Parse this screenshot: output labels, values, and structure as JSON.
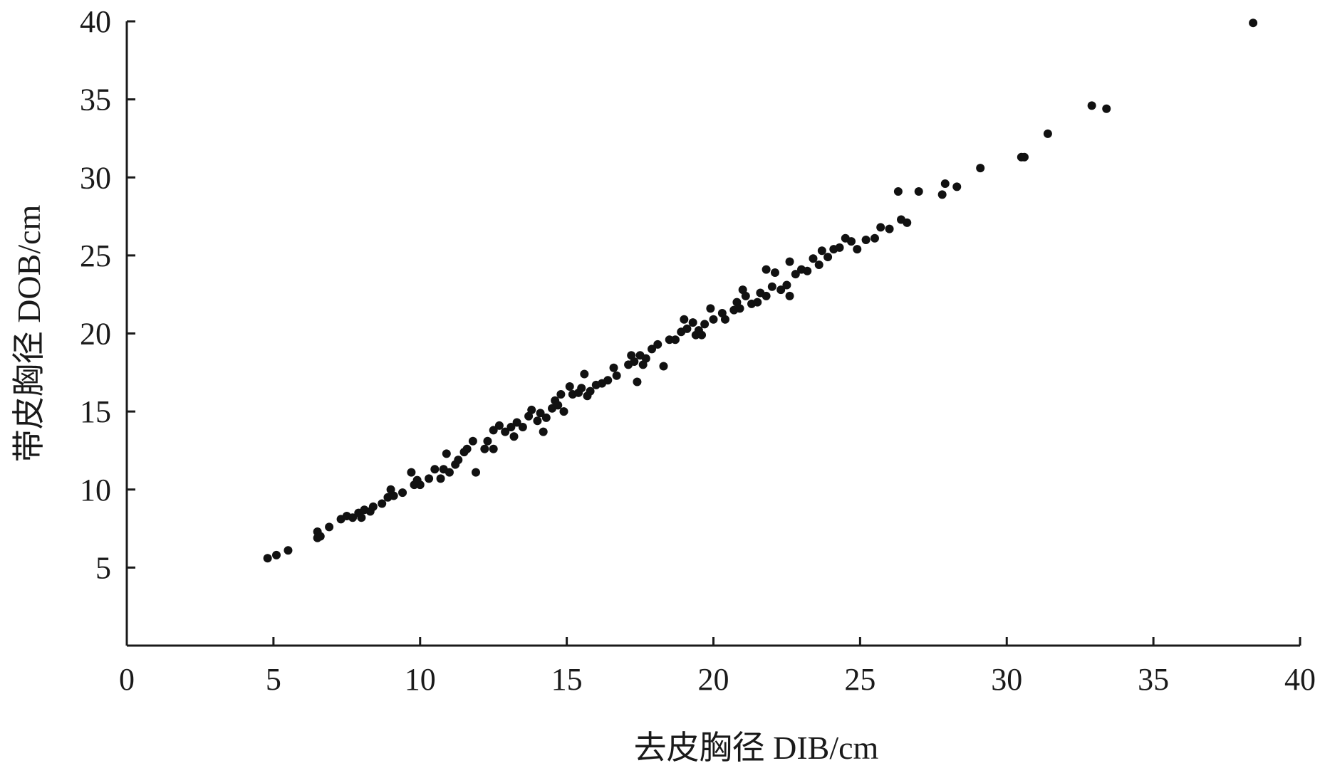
{
  "chart_data": {
    "type": "scatter",
    "title": "",
    "xlabel": "去皮胸径 DIB/cm",
    "ylabel": "带皮胸径 DOB/cm",
    "xlim": [
      0,
      40
    ],
    "ylim": [
      0,
      40
    ],
    "xticks": [
      0,
      5,
      10,
      15,
      20,
      25,
      30,
      35,
      40
    ],
    "yticks": [
      5,
      10,
      15,
      20,
      25,
      30,
      35,
      40
    ],
    "grid": false,
    "legend": "none",
    "marker_color": "#111111",
    "series": [
      {
        "points": [
          [
            4.8,
            5.6
          ],
          [
            5.1,
            5.8
          ],
          [
            5.5,
            6.1
          ],
          [
            6.5,
            6.9
          ],
          [
            6.5,
            7.3
          ],
          [
            6.6,
            7.0
          ],
          [
            6.9,
            7.6
          ],
          [
            7.3,
            8.1
          ],
          [
            7.5,
            8.3
          ],
          [
            7.7,
            8.2
          ],
          [
            7.9,
            8.5
          ],
          [
            8.0,
            8.2
          ],
          [
            8.1,
            8.7
          ],
          [
            8.3,
            8.6
          ],
          [
            8.4,
            8.9
          ],
          [
            8.7,
            9.1
          ],
          [
            8.9,
            9.5
          ],
          [
            9.1,
            9.6
          ],
          [
            9.0,
            10.0
          ],
          [
            9.4,
            9.8
          ],
          [
            9.7,
            11.1
          ],
          [
            9.8,
            10.3
          ],
          [
            10.0,
            10.3
          ],
          [
            9.9,
            10.6
          ],
          [
            10.3,
            10.7
          ],
          [
            10.5,
            11.3
          ],
          [
            10.7,
            10.7
          ],
          [
            10.8,
            11.3
          ],
          [
            10.9,
            12.3
          ],
          [
            11.0,
            11.1
          ],
          [
            11.2,
            11.6
          ],
          [
            11.3,
            11.9
          ],
          [
            11.5,
            12.4
          ],
          [
            11.6,
            12.6
          ],
          [
            11.9,
            11.1
          ],
          [
            11.8,
            13.1
          ],
          [
            12.2,
            12.6
          ],
          [
            12.3,
            13.1
          ],
          [
            12.5,
            13.8
          ],
          [
            12.5,
            12.6
          ],
          [
            12.7,
            14.1
          ],
          [
            12.9,
            13.7
          ],
          [
            13.1,
            14.0
          ],
          [
            13.2,
            13.4
          ],
          [
            13.3,
            14.3
          ],
          [
            13.5,
            14.0
          ],
          [
            13.7,
            14.7
          ],
          [
            13.8,
            15.1
          ],
          [
            14.0,
            14.4
          ],
          [
            14.1,
            14.9
          ],
          [
            14.2,
            13.7
          ],
          [
            14.3,
            14.6
          ],
          [
            14.5,
            15.2
          ],
          [
            14.6,
            15.7
          ],
          [
            14.7,
            15.4
          ],
          [
            14.8,
            16.1
          ],
          [
            14.9,
            15.0
          ],
          [
            15.1,
            16.6
          ],
          [
            15.2,
            16.1
          ],
          [
            15.4,
            16.2
          ],
          [
            15.5,
            16.5
          ],
          [
            15.6,
            17.4
          ],
          [
            15.7,
            16.0
          ],
          [
            15.8,
            16.3
          ],
          [
            16.0,
            16.7
          ],
          [
            16.2,
            16.8
          ],
          [
            16.4,
            17.0
          ],
          [
            16.6,
            17.8
          ],
          [
            16.7,
            17.3
          ],
          [
            17.1,
            18.0
          ],
          [
            17.2,
            18.6
          ],
          [
            17.3,
            18.2
          ],
          [
            17.4,
            16.9
          ],
          [
            17.5,
            18.6
          ],
          [
            17.6,
            18.0
          ],
          [
            17.7,
            18.4
          ],
          [
            17.9,
            19.0
          ],
          [
            18.1,
            19.3
          ],
          [
            18.3,
            17.9
          ],
          [
            18.5,
            19.6
          ],
          [
            18.7,
            19.6
          ],
          [
            18.9,
            20.1
          ],
          [
            19.0,
            20.9
          ],
          [
            19.1,
            20.3
          ],
          [
            19.3,
            20.7
          ],
          [
            19.4,
            19.9
          ],
          [
            19.5,
            20.2
          ],
          [
            19.6,
            19.9
          ],
          [
            19.7,
            20.6
          ],
          [
            19.9,
            21.6
          ],
          [
            20.0,
            20.9
          ],
          [
            20.3,
            21.3
          ],
          [
            20.4,
            20.9
          ],
          [
            20.7,
            21.5
          ],
          [
            20.8,
            22.0
          ],
          [
            20.9,
            21.6
          ],
          [
            21.0,
            22.8
          ],
          [
            21.1,
            22.4
          ],
          [
            21.3,
            21.9
          ],
          [
            21.5,
            22.0
          ],
          [
            21.6,
            22.6
          ],
          [
            21.8,
            24.1
          ],
          [
            21.8,
            22.4
          ],
          [
            22.0,
            23.0
          ],
          [
            22.1,
            23.9
          ],
          [
            22.3,
            22.8
          ],
          [
            22.5,
            23.1
          ],
          [
            22.6,
            24.6
          ],
          [
            22.6,
            22.4
          ],
          [
            22.8,
            23.8
          ],
          [
            23.0,
            24.1
          ],
          [
            23.2,
            24.0
          ],
          [
            23.4,
            24.8
          ],
          [
            23.6,
            24.4
          ],
          [
            23.7,
            25.3
          ],
          [
            23.9,
            24.9
          ],
          [
            24.1,
            25.4
          ],
          [
            24.3,
            25.5
          ],
          [
            24.5,
            26.1
          ],
          [
            24.7,
            25.9
          ],
          [
            24.9,
            25.4
          ],
          [
            25.2,
            26.0
          ],
          [
            25.5,
            26.1
          ],
          [
            25.7,
            26.8
          ],
          [
            26.0,
            26.7
          ],
          [
            26.3,
            29.1
          ],
          [
            26.4,
            27.3
          ],
          [
            26.6,
            27.1
          ],
          [
            27.0,
            29.1
          ],
          [
            27.8,
            28.9
          ],
          [
            27.9,
            29.6
          ],
          [
            28.3,
            29.4
          ],
          [
            29.1,
            30.6
          ],
          [
            30.5,
            31.3
          ],
          [
            30.6,
            31.3
          ],
          [
            31.4,
            32.8
          ],
          [
            32.9,
            34.6
          ],
          [
            33.4,
            34.4
          ],
          [
            38.4,
            39.9
          ]
        ]
      }
    ]
  }
}
